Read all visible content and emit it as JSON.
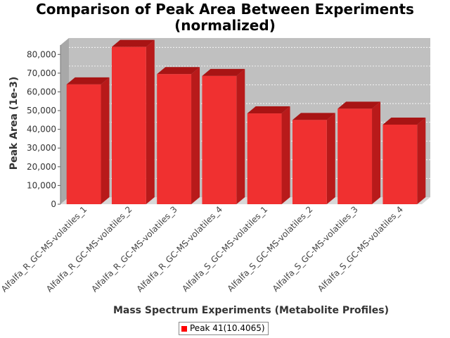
{
  "chart_data": {
    "type": "bar",
    "title": "Comparison of Peak Area Between Experiments",
    "subtitle": "(normalized)",
    "xlabel": "Mass Spectrum Experiments (Metabolite Profiles)",
    "ylabel": "Peak Area (1e-3)",
    "categories": [
      "Alfalfa_R_GC-MS-volatiles_1",
      "Alfalfa_R_GC-MS-volatiles_2",
      "Alfalfa_R_GC-MS-volatiles_3",
      "Alfalfa_R_GC-MS-volatiles_4",
      "Alfalfa_S_GC-MS-volatiles_1",
      "Alfalfa_S_GC-MS-volatiles_2",
      "Alfalfa_S_GC-MS-volatiles_3",
      "Alfalfa_S_GC-MS-volatiles_4"
    ],
    "series": [
      {
        "name": "Peak 41(10.4065)",
        "color": "#ff0000",
        "values": [
          64000,
          84000,
          69500,
          68500,
          48500,
          45000,
          51000,
          42500
        ]
      }
    ],
    "ylim": [
      0,
      85000
    ],
    "yticks": [
      0,
      10000,
      20000,
      30000,
      40000,
      50000,
      60000,
      70000,
      80000
    ],
    "ytick_labels": [
      "0",
      "10,000",
      "20,000",
      "30,000",
      "40,000",
      "50,000",
      "60,000",
      "70,000",
      "80,000"
    ],
    "grid": true,
    "legend_position": "bottom-center",
    "three_d": true
  }
}
